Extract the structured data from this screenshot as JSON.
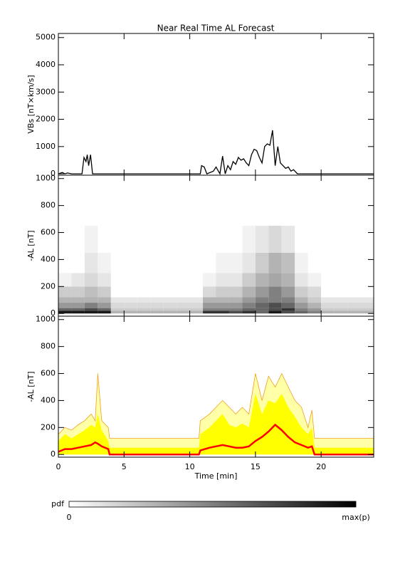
{
  "chart_data": [
    {
      "type": "line",
      "title": "Near Real Time AL Forecast",
      "y_label": "VBs [nT×km/s]",
      "xlim": [
        0,
        24
      ],
      "xticks": [
        0,
        5,
        10,
        15,
        20
      ],
      "ylim": [
        -50,
        5150
      ],
      "yticks": [
        0,
        1000,
        2000,
        3000,
        4000,
        5000
      ],
      "series": [
        {
          "color": "#000000",
          "x": [
            0,
            0.3,
            0.5,
            0.7,
            1.0,
            1.8,
            1.95,
            2.1,
            2.2,
            2.3,
            2.45,
            2.6,
            2.7,
            10.8,
            10.9,
            11.1,
            11.3,
            11.8,
            12.0,
            12.3,
            12.5,
            12.7,
            12.9,
            13.1,
            13.3,
            13.5,
            13.7,
            13.9,
            14.1,
            14.3,
            14.5,
            14.7,
            14.9,
            15.1,
            15.3,
            15.5,
            15.7,
            15.9,
            16.1,
            16.3,
            16.5,
            16.7,
            16.9,
            17.1,
            17.3,
            17.5,
            17.7,
            17.9,
            18.2,
            24
          ],
          "values": [
            0,
            50,
            0,
            30,
            0,
            0,
            600,
            450,
            700,
            300,
            700,
            0,
            0,
            0,
            300,
            250,
            0,
            100,
            250,
            0,
            650,
            0,
            300,
            150,
            450,
            350,
            600,
            500,
            550,
            400,
            300,
            700,
            900,
            850,
            600,
            400,
            1000,
            1100,
            1050,
            1600,
            300,
            1000,
            400,
            300,
            200,
            250,
            100,
            150,
            0,
            0
          ]
        }
      ]
    },
    {
      "type": "heatmap",
      "y_label": "-AL [nT]",
      "xlim": [
        0,
        24
      ],
      "xticks": [
        0,
        5,
        10,
        15,
        20
      ],
      "ylim": [
        -20,
        1025
      ],
      "yticks": [
        0,
        200,
        400,
        600,
        800,
        1000
      ],
      "xbins": [
        0,
        1,
        2,
        3,
        4,
        5,
        6,
        7,
        8,
        9,
        10,
        11,
        12,
        13,
        14,
        15,
        16,
        17,
        18,
        19,
        20,
        21,
        22,
        23,
        24
      ],
      "ybins": [
        0,
        20,
        40,
        80,
        120,
        200,
        300,
        450,
        650
      ],
      "z": [
        [
          0.9,
          0.9,
          0.9,
          0.9,
          0.3,
          0.3,
          0.3,
          0.3,
          0.3,
          0.3,
          0.3,
          0.8,
          0.8,
          0.7,
          0.8,
          0.6,
          0.9,
          0.7,
          0.6,
          0.5,
          0.3,
          0.3,
          0.3,
          0.3
        ],
        [
          0.6,
          0.6,
          0.7,
          0.6,
          0.2,
          0.2,
          0.2,
          0.2,
          0.2,
          0.2,
          0.2,
          0.5,
          0.5,
          0.5,
          0.6,
          0.6,
          0.7,
          0.8,
          0.5,
          0.4,
          0.2,
          0.2,
          0.2,
          0.2
        ],
        [
          0.4,
          0.4,
          0.5,
          0.4,
          0.15,
          0.15,
          0.15,
          0.15,
          0.15,
          0.15,
          0.15,
          0.4,
          0.4,
          0.4,
          0.5,
          0.6,
          0.7,
          0.6,
          0.4,
          0.3,
          0.15,
          0.15,
          0.15,
          0.15
        ],
        [
          0.3,
          0.3,
          0.3,
          0.3,
          0.1,
          0.1,
          0.1,
          0.1,
          0.1,
          0.1,
          0.1,
          0.3,
          0.3,
          0.3,
          0.4,
          0.5,
          0.5,
          0.5,
          0.3,
          0.2,
          0.1,
          0.1,
          0.1,
          0.1
        ],
        [
          0.2,
          0.2,
          0.25,
          0.2,
          0,
          0,
          0,
          0,
          0,
          0,
          0,
          0.15,
          0.2,
          0.2,
          0.3,
          0.4,
          0.5,
          0.4,
          0.2,
          0.15,
          0,
          0,
          0,
          0
        ],
        [
          0.05,
          0.1,
          0.15,
          0.1,
          0,
          0,
          0,
          0,
          0,
          0,
          0,
          0.05,
          0.1,
          0.1,
          0.2,
          0.3,
          0.35,
          0.3,
          0.1,
          0.05,
          0,
          0,
          0,
          0
        ],
        [
          0,
          0,
          0.1,
          0.05,
          0,
          0,
          0,
          0,
          0,
          0,
          0,
          0,
          0.05,
          0.05,
          0.1,
          0.2,
          0.3,
          0.25,
          0.05,
          0,
          0,
          0,
          0,
          0
        ],
        [
          0,
          0,
          0.05,
          0,
          0,
          0,
          0,
          0,
          0,
          0,
          0,
          0,
          0,
          0,
          0.05,
          0.1,
          0.15,
          0.1,
          0,
          0,
          0,
          0,
          0,
          0
        ]
      ]
    },
    {
      "type": "band",
      "y_label": "-AL [nT]",
      "x_label": "Time [min]",
      "xlim": [
        0,
        24
      ],
      "xticks": [
        0,
        5,
        10,
        15,
        20
      ],
      "ylim": [
        -20,
        1025
      ],
      "yticks": [
        0,
        200,
        400,
        600,
        800,
        1000
      ],
      "x": [
        0,
        0.5,
        1,
        1.5,
        2,
        2.5,
        2.8,
        3,
        3.3,
        3.8,
        3.9,
        10.7,
        10.8,
        11.5,
        12,
        12.5,
        13,
        13.5,
        14,
        14.5,
        15,
        15.5,
        16,
        16.5,
        17,
        17.5,
        18,
        18.5,
        19,
        19.3,
        19.5,
        24
      ],
      "outer": {
        "color": "#ffffa8",
        "line": "#f0a020",
        "values": [
          150,
          200,
          180,
          220,
          250,
          300,
          250,
          600,
          250,
          200,
          120,
          120,
          250,
          300,
          350,
          400,
          350,
          300,
          350,
          300,
          600,
          400,
          580,
          500,
          600,
          500,
          400,
          350,
          200,
          330,
          120,
          120
        ]
      },
      "inner": {
        "color": "#ffff00",
        "values": [
          100,
          150,
          120,
          150,
          180,
          220,
          200,
          300,
          180,
          100,
          50,
          50,
          150,
          200,
          250,
          300,
          220,
          200,
          230,
          200,
          450,
          300,
          400,
          380,
          450,
          350,
          280,
          200,
          150,
          200,
          50,
          50
        ]
      },
      "median": {
        "color": "#ff0000",
        "values": [
          20,
          40,
          40,
          50,
          60,
          70,
          90,
          80,
          60,
          40,
          0,
          0,
          30,
          50,
          60,
          70,
          60,
          50,
          50,
          60,
          100,
          130,
          170,
          220,
          180,
          130,
          90,
          70,
          50,
          60,
          0,
          0
        ]
      }
    }
  ],
  "colorbar": {
    "label": "pdf",
    "min_label": "0",
    "max_label": "max(p)"
  }
}
